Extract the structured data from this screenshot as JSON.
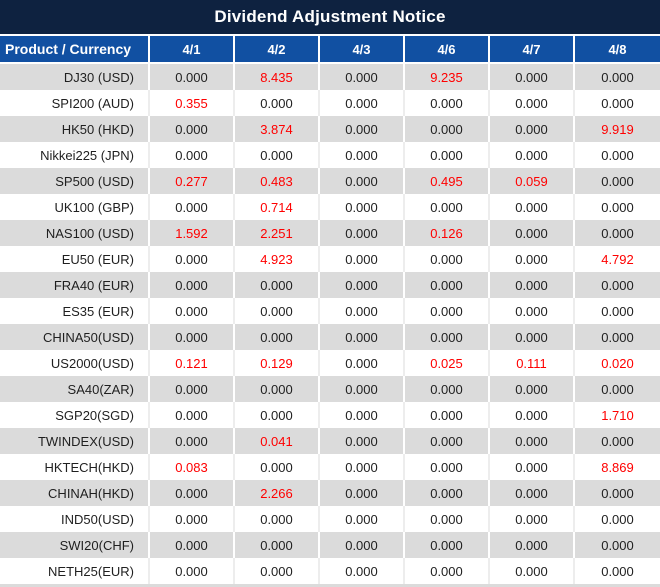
{
  "title": "Dividend Adjustment Notice",
  "chart_data": {
    "type": "table",
    "title": "Dividend Adjustment Notice",
    "columns": [
      "Product / Currency",
      "4/1",
      "4/2",
      "4/3",
      "4/6",
      "4/7",
      "4/8"
    ],
    "zero_display": "0.000",
    "highlight_rule": "non-zero values rendered in red",
    "rows": [
      {
        "product": "DJ30 (USD)",
        "values": [
          "0.000",
          "8.435",
          "0.000",
          "9.235",
          "0.000",
          "0.000"
        ]
      },
      {
        "product": "SPI200 (AUD)",
        "values": [
          "0.355",
          "0.000",
          "0.000",
          "0.000",
          "0.000",
          "0.000"
        ]
      },
      {
        "product": "HK50 (HKD)",
        "values": [
          "0.000",
          "3.874",
          "0.000",
          "0.000",
          "0.000",
          "9.919"
        ]
      },
      {
        "product": "Nikkei225 (JPN)",
        "values": [
          "0.000",
          "0.000",
          "0.000",
          "0.000",
          "0.000",
          "0.000"
        ]
      },
      {
        "product": "SP500 (USD)",
        "values": [
          "0.277",
          "0.483",
          "0.000",
          "0.495",
          "0.059",
          "0.000"
        ]
      },
      {
        "product": "UK100 (GBP)",
        "values": [
          "0.000",
          "0.714",
          "0.000",
          "0.000",
          "0.000",
          "0.000"
        ]
      },
      {
        "product": "NAS100 (USD)",
        "values": [
          "1.592",
          "2.251",
          "0.000",
          "0.126",
          "0.000",
          "0.000"
        ]
      },
      {
        "product": "EU50 (EUR)",
        "values": [
          "0.000",
          "4.923",
          "0.000",
          "0.000",
          "0.000",
          "4.792"
        ]
      },
      {
        "product": "FRA40 (EUR)",
        "values": [
          "0.000",
          "0.000",
          "0.000",
          "0.000",
          "0.000",
          "0.000"
        ]
      },
      {
        "product": "ES35 (EUR)",
        "values": [
          "0.000",
          "0.000",
          "0.000",
          "0.000",
          "0.000",
          "0.000"
        ]
      },
      {
        "product": "CHINA50(USD)",
        "values": [
          "0.000",
          "0.000",
          "0.000",
          "0.000",
          "0.000",
          "0.000"
        ]
      },
      {
        "product": "US2000(USD)",
        "values": [
          "0.121",
          "0.129",
          "0.000",
          "0.025",
          "0.111",
          "0.020"
        ]
      },
      {
        "product": "SA40(ZAR)",
        "values": [
          "0.000",
          "0.000",
          "0.000",
          "0.000",
          "0.000",
          "0.000"
        ]
      },
      {
        "product": "SGP20(SGD)",
        "values": [
          "0.000",
          "0.000",
          "0.000",
          "0.000",
          "0.000",
          "1.710"
        ]
      },
      {
        "product": "TWINDEX(USD)",
        "values": [
          "0.000",
          "0.041",
          "0.000",
          "0.000",
          "0.000",
          "0.000"
        ]
      },
      {
        "product": "HKTECH(HKD)",
        "values": [
          "0.083",
          "0.000",
          "0.000",
          "0.000",
          "0.000",
          "8.869"
        ]
      },
      {
        "product": "CHINAH(HKD)",
        "values": [
          "0.000",
          "2.266",
          "0.000",
          "0.000",
          "0.000",
          "0.000"
        ]
      },
      {
        "product": "IND50(USD)",
        "values": [
          "0.000",
          "0.000",
          "0.000",
          "0.000",
          "0.000",
          "0.000"
        ]
      },
      {
        "product": "SWI20(CHF)",
        "values": [
          "0.000",
          "0.000",
          "0.000",
          "0.000",
          "0.000",
          "0.000"
        ]
      },
      {
        "product": "NETH25(EUR)",
        "values": [
          "0.000",
          "0.000",
          "0.000",
          "0.000",
          "0.000",
          "0.000"
        ]
      }
    ]
  },
  "colors": {
    "title_bar_bg": "#0E2240",
    "header_bg": "#1150A2",
    "alt_row_bg": "#DBDBDB",
    "zero_text": "#1F1F1F",
    "nonzero_text": "#FF0000",
    "header_text": "#FFFFFF"
  }
}
